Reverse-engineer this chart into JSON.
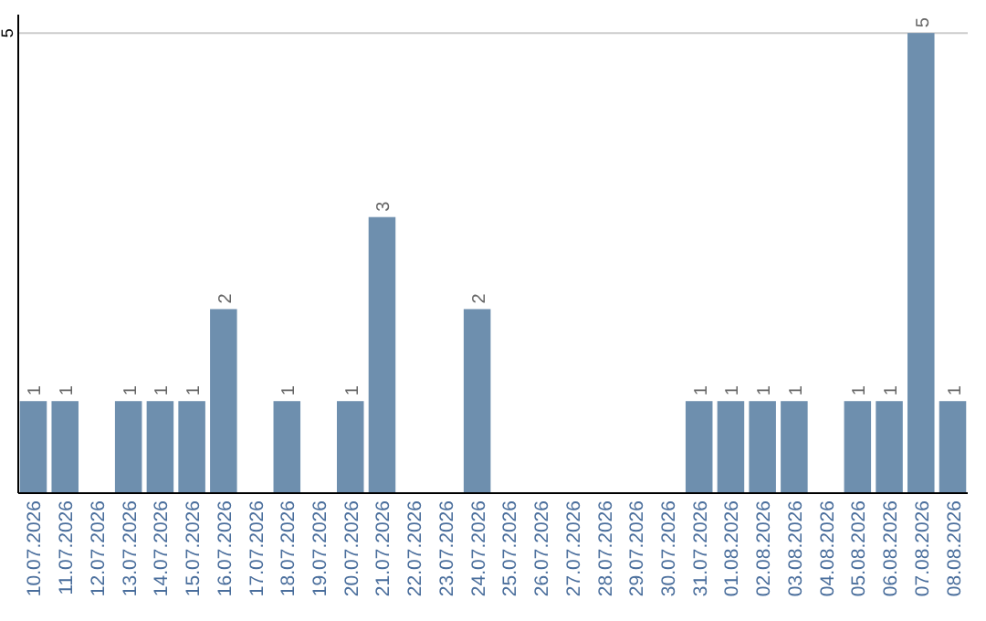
{
  "chart_data": {
    "type": "bar",
    "categories": [
      "10.07.2026",
      "11.07.2026",
      "12.07.2026",
      "13.07.2026",
      "14.07.2026",
      "15.07.2026",
      "16.07.2026",
      "17.07.2026",
      "18.07.2026",
      "19.07.2026",
      "20.07.2026",
      "21.07.2026",
      "22.07.2026",
      "23.07.2026",
      "24.07.2026",
      "25.07.2026",
      "26.07.2026",
      "27.07.2026",
      "28.07.2026",
      "29.07.2026",
      "30.07.2026",
      "31.07.2026",
      "01.08.2026",
      "02.08.2026",
      "03.08.2026",
      "04.08.2026",
      "05.08.2026",
      "06.08.2026",
      "07.08.2026",
      "08.08.2026"
    ],
    "values": [
      1,
      1,
      0,
      1,
      1,
      1,
      2,
      0,
      1,
      0,
      1,
      3,
      0,
      0,
      2,
      0,
      0,
      0,
      0,
      0,
      0,
      1,
      1,
      1,
      1,
      0,
      1,
      1,
      5,
      1
    ],
    "value_labels": [
      "1",
      "1",
      null,
      "1",
      "1",
      "1",
      "2",
      null,
      "1",
      null,
      "1",
      "3",
      null,
      null,
      "2",
      null,
      null,
      null,
      null,
      null,
      null,
      "1",
      "1",
      "1",
      "1",
      null,
      "1",
      "1",
      "5",
      "1"
    ],
    "color": "#6e8fae",
    "ylim": [
      0,
      5.2
    ],
    "yticks": [
      5
    ],
    "grid": "y"
  }
}
